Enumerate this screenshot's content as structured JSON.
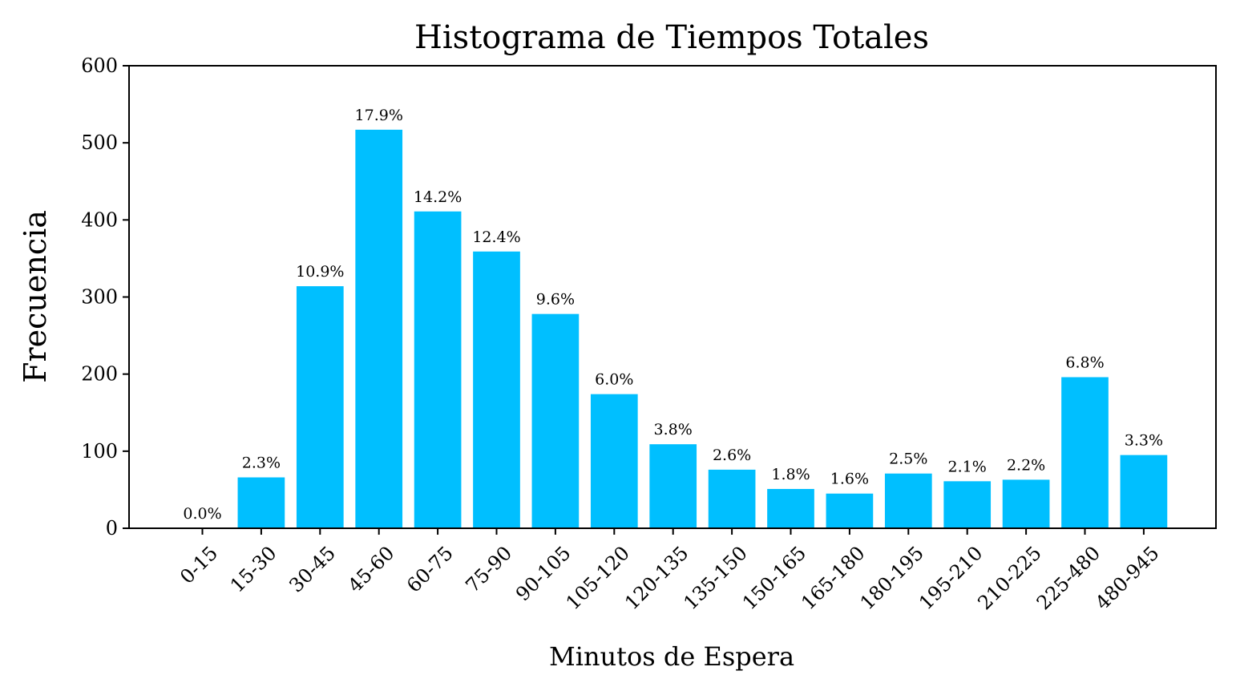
{
  "chart_data": {
    "type": "bar",
    "title": "Histograma de Tiempos Totales",
    "xlabel": "Minutos de Espera",
    "ylabel": "Frecuencia",
    "ylim": [
      0,
      600
    ],
    "yticks": [
      0,
      100,
      200,
      300,
      400,
      500,
      600
    ],
    "categories": [
      "0-15",
      "15-30",
      "30-45",
      "45-60",
      "60-75",
      "75-90",
      "90-105",
      "105-120",
      "120-135",
      "135-150",
      "150-165",
      "165-180",
      "180-195",
      "195-210",
      "210-225",
      "225-480",
      "480-945"
    ],
    "values": [
      0,
      66,
      314,
      517,
      411,
      359,
      278,
      174,
      109,
      76,
      51,
      45,
      71,
      61,
      63,
      196,
      95
    ],
    "data_labels": [
      "0.0%",
      "2.3%",
      "10.9%",
      "17.9%",
      "14.2%",
      "12.4%",
      "9.6%",
      "6.0%",
      "3.8%",
      "2.6%",
      "1.8%",
      "1.6%",
      "2.5%",
      "2.1%",
      "2.2%",
      "6.8%",
      "3.3%"
    ],
    "bar_color": "#00BFFF",
    "grid": false,
    "legend": "none"
  }
}
